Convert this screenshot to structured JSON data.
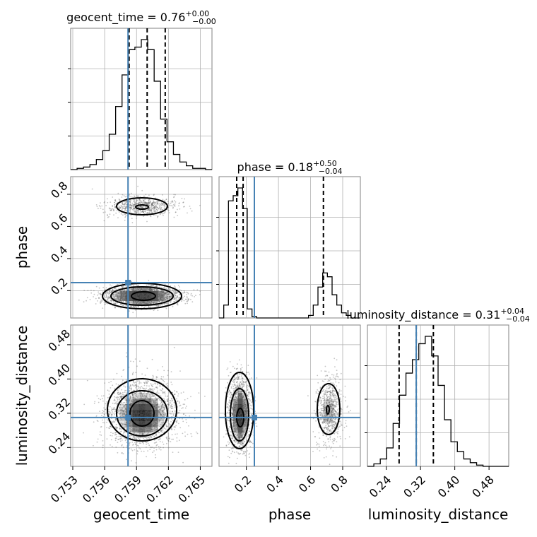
{
  "chart_data": {
    "type": "corner",
    "parameters": [
      "geocent_time",
      "phase",
      "luminosity_distance"
    ],
    "truth_color": "#4682b4",
    "truths": {
      "geocent_time": 0.7582,
      "phase": 0.25,
      "luminosity_distance": 0.31
    },
    "ranges": {
      "geocent_time": [
        0.7528,
        0.7661
      ],
      "phase": [
        0.03,
        0.91
      ],
      "luminosity_distance": [
        0.196,
        0.526
      ]
    },
    "ticks": {
      "geocent_time": [
        0.753,
        0.756,
        0.759,
        0.762,
        0.765
      ],
      "phase": [
        0.2,
        0.4,
        0.6,
        0.8
      ],
      "luminosity_distance": [
        0.24,
        0.32,
        0.4,
        0.48
      ]
    },
    "tick_labels": {
      "geocent_time": [
        "0.753",
        "0.756",
        "0.759",
        "0.762",
        "0.765"
      ],
      "phase": [
        "0.2",
        "0.4",
        "0.6",
        "0.8"
      ],
      "luminosity_distance": [
        "0.24",
        "0.32",
        "0.40",
        "0.48"
      ]
    },
    "titles": [
      {
        "param": "geocent_time",
        "main": "geocent_time = 0.76",
        "sup": "+0.00",
        "sub": "−0.00"
      },
      {
        "param": "phase",
        "main": "phase = 0.18",
        "sup": "+0.50",
        "sub": "−0.04"
      },
      {
        "param": "luminosity_distance",
        "main": "luminosity_distance = 0.31",
        "sup": "+0.04",
        "sub": "−0.04"
      }
    ],
    "quantiles": {
      "geocent_time": [
        0.7583,
        0.76,
        0.7617
      ],
      "phase": [
        0.14,
        0.18,
        0.68
      ],
      "luminosity_distance": [
        0.27,
        0.31,
        0.35
      ]
    },
    "histograms": {
      "geocent_time": {
        "range": [
          0.7528,
          0.7661
        ],
        "counts": [
          0,
          1,
          2,
          4,
          8,
          15,
          28,
          50,
          75,
          95,
          97,
          103,
          95,
          70,
          40,
          22,
          12,
          6,
          3,
          1,
          1,
          0
        ]
      },
      "phase": {
        "range": [
          0.03,
          0.91
        ],
        "counts": [
          0,
          10,
          91,
          95,
          101,
          85,
          7,
          1,
          0,
          0,
          0,
          0,
          0,
          0,
          0,
          0,
          0,
          0,
          0,
          2,
          10,
          24,
          35,
          32,
          18,
          10,
          4,
          2,
          0,
          0
        ]
      },
      "luminosity_distance": {
        "range": [
          0.196,
          0.526
        ],
        "counts": [
          0,
          2,
          6,
          15,
          35,
          58,
          76,
          87,
          100,
          106,
          90,
          66,
          38,
          20,
          12,
          6,
          3,
          1,
          0,
          0,
          0,
          0
        ]
      }
    }
  }
}
